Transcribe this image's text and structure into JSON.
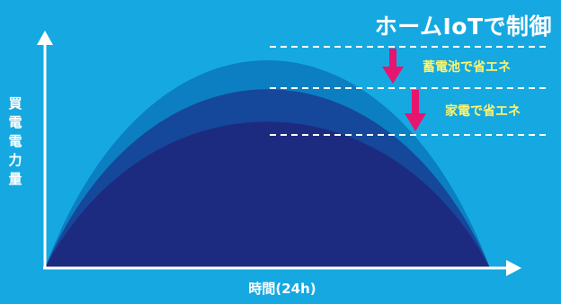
{
  "title": "ホームIoTで制御",
  "y_axis_label": "買電電力量",
  "x_axis_label": "時間(24h)",
  "annotations": [
    {
      "text": "蓄電池で省エネ"
    },
    {
      "text": "家電で省エネ"
    }
  ],
  "colors": {
    "background": "#16a9e1",
    "curve_original": "#0b7fc2",
    "curve_battery": "#15479a",
    "curve_appliance": "#1c2b80",
    "arrow": "#e6156f",
    "annotation_text": "#fff36b",
    "axis": "#ffffff"
  },
  "icons": [
    "down-arrow-icon",
    "down-arrow-icon"
  ]
}
